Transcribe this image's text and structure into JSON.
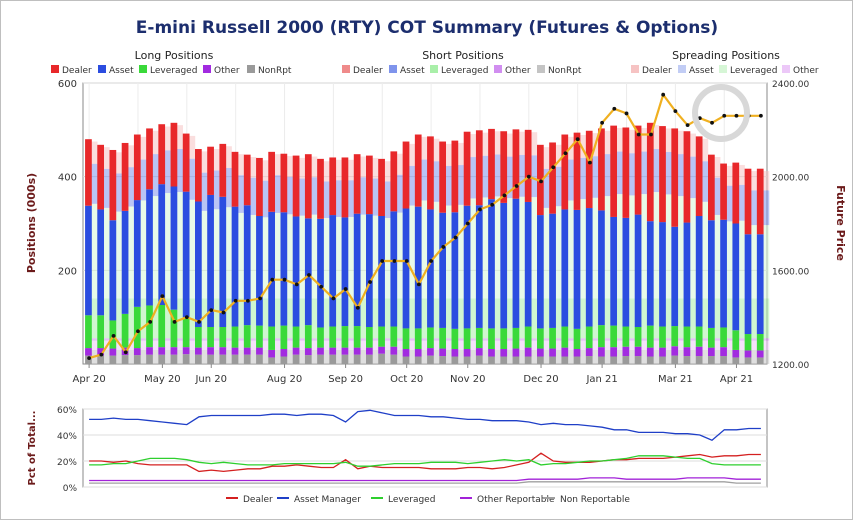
{
  "chart_data": [
    {
      "type": "bar",
      "title": "E-mini Russell 2000 (RTY) COT Summary (Futures & Options)",
      "stacked": true,
      "ylabel": "Positions (000s)",
      "y2label": "Future Price",
      "ylim": [
        0,
        600
      ],
      "y2lim": [
        1200,
        2400
      ],
      "yticks": [
        "200",
        "400",
        "600"
      ],
      "y2ticks": [
        "1200.00",
        "1600.00",
        "2000.00",
        "2400.00"
      ],
      "xticks": [
        "Apr 20",
        "May 20",
        "Jun 20",
        "Aug 20",
        "Sep 20",
        "Oct 20",
        "Nov 20",
        "Dec 20",
        "Jan 21",
        "Mar 21",
        "Apr 21"
      ],
      "xtick_positions": [
        0.5,
        6.5,
        10.5,
        16.5,
        21.5,
        26.5,
        31.5,
        37.5,
        42.5,
        48.5,
        53.5
      ],
      "n_weeks": 56,
      "grid": true,
      "legend_groups": [
        {
          "title": "Long Positions",
          "items": [
            "Dealer",
            "Asset",
            "Leveraged",
            "Other",
            "NonRpt"
          ],
          "colors": [
            "#e8282a",
            "#2b4de0",
            "#3ad93a",
            "#a22be0",
            "#9a9a9a"
          ]
        },
        {
          "title": "Short Positions",
          "items": [
            "Dealer",
            "Asset",
            "Leveraged",
            "Other",
            "NonRpt"
          ],
          "colors": [
            "#ef8a8a",
            "#7f94ec",
            "#a9efa9",
            "#d18ef0",
            "#c4c4c4"
          ]
        },
        {
          "title": "Spreading Positions",
          "items": [
            "Dealer",
            "Asset",
            "Leveraged",
            "Other"
          ],
          "colors": [
            "#f6c3c3",
            "#c2cdf5",
            "#d6f6d6",
            "#ecc8f8"
          ]
        }
      ],
      "long_total": [
        480,
        468,
        457,
        472,
        490,
        503,
        512,
        515,
        492,
        459,
        464,
        470,
        453,
        447,
        440,
        453,
        449,
        445,
        448,
        438,
        441,
        441,
        448,
        445,
        438,
        454,
        475,
        490,
        486,
        475,
        477,
        496,
        499,
        502,
        497,
        501,
        500,
        468,
        473,
        490,
        494,
        498,
        503,
        509,
        505,
        509,
        515,
        508,
        503,
        497,
        486,
        447,
        428,
        430,
        417,
        417
      ],
      "dealer_long": [
        142,
        138,
        150,
        145,
        140,
        130,
        128,
        136,
        124,
        112,
        103,
        113,
        117,
        108,
        124,
        128,
        125,
        130,
        137,
        128,
        123,
        128,
        127,
        125,
        122,
        128,
        143,
        154,
        156,
        152,
        153,
        158,
        160,
        150,
        153,
        148,
        154,
        150,
        152,
        160,
        165,
        165,
        175,
        195,
        193,
        190,
        210,
        205,
        210,
        195,
        170,
        140,
        120,
        130,
        140,
        140
      ],
      "asset_long": [
        234,
        226,
        214,
        220,
        228,
        248,
        258,
        263,
        268,
        268,
        282,
        278,
        256,
        256,
        234,
        245,
        242,
        235,
        228,
        232,
        238,
        232,
        240,
        241,
        236,
        246,
        256,
        260,
        252,
        246,
        249,
        262,
        262,
        276,
        268,
        276,
        266,
        242,
        244,
        250,
        254,
        253,
        245,
        232,
        232,
        240,
        223,
        223,
        212,
        222,
        236,
        230,
        230,
        228,
        213,
        213
      ],
      "leveraged_long": [
        70,
        70,
        60,
        72,
        88,
        89,
        90,
        80,
        64,
        44,
        43,
        43,
        45,
        48,
        47,
        50,
        50,
        45,
        49,
        43,
        45,
        46,
        46,
        44,
        43,
        43,
        44,
        44,
        44,
        44,
        43,
        44,
        43,
        44,
        44,
        44,
        45,
        43,
        44,
        45,
        43,
        46,
        47,
        46,
        43,
        42,
        47,
        45,
        43,
        44,
        43,
        42,
        42,
        42,
        35,
        35
      ],
      "other_long": [
        16,
        16,
        15,
        16,
        15,
        16,
        16,
        16,
        15,
        15,
        16,
        16,
        15,
        15,
        15,
        16,
        16,
        15,
        15,
        15,
        15,
        15,
        15,
        15,
        15,
        17,
        16,
        16,
        16,
        16,
        16,
        16,
        16,
        16,
        16,
        17,
        19,
        17,
        17,
        19,
        16,
        17,
        20,
        20,
        20,
        20,
        19,
        19,
        20,
        19,
        20,
        18,
        19,
        16,
        15,
        15
      ],
      "nonrpt_long": [
        18,
        18,
        18,
        19,
        19,
        20,
        20,
        20,
        21,
        20,
        20,
        20,
        20,
        20,
        20,
        14,
        16,
        20,
        19,
        20,
        20,
        20,
        20,
        20,
        22,
        20,
        16,
        16,
        18,
        17,
        16,
        16,
        18,
        16,
        16,
        16,
        16,
        16,
        16,
        16,
        16,
        17,
        16,
        16,
        17,
        17,
        16,
        16,
        18,
        17,
        17,
        17,
        17,
        14,
        14,
        14
      ],
      "future_price": [
        1225,
        1240,
        1320,
        1250,
        1340,
        1380,
        1490,
        1380,
        1400,
        1380,
        1430,
        1420,
        1470,
        1470,
        1480,
        1560,
        1560,
        1540,
        1580,
        1530,
        1480,
        1520,
        1440,
        1550,
        1640,
        1640,
        1640,
        1540,
        1640,
        1700,
        1740,
        1800,
        1860,
        1880,
        1920,
        1960,
        2000,
        1980,
        2040,
        2100,
        2160,
        2060,
        2230,
        2290,
        2270,
        2180,
        2180,
        2350,
        2280,
        2220,
        2250,
        2230,
        2260,
        2260,
        2260,
        2260
      ]
    },
    {
      "type": "line",
      "ylabel": "Pct of Total...",
      "ylim": [
        0,
        60
      ],
      "yticks": [
        "0%",
        "20%",
        "40%",
        "60%"
      ],
      "grid": true,
      "series": [
        {
          "name": "Dealer",
          "color": "#d42020",
          "values": [
            20,
            20,
            19,
            20,
            18,
            17,
            17,
            17,
            17,
            12,
            13,
            12,
            13,
            14,
            14,
            16,
            16,
            17,
            16,
            15,
            15,
            21,
            14,
            16,
            15,
            15,
            15,
            15,
            14,
            14,
            14,
            15,
            15,
            14,
            15,
            17,
            19,
            26,
            20,
            19,
            19,
            19,
            20,
            21,
            21,
            22,
            22,
            22,
            23,
            24,
            25,
            23,
            24,
            24,
            25,
            25
          ]
        },
        {
          "name": "Asset Manager",
          "color": "#1f3fc7",
          "values": [
            52,
            52,
            53,
            52,
            52,
            51,
            50,
            49,
            48,
            54,
            55,
            55,
            55,
            55,
            55,
            56,
            56,
            55,
            56,
            56,
            55,
            50,
            58,
            59,
            57,
            55,
            55,
            55,
            54,
            54,
            53,
            52,
            52,
            51,
            51,
            51,
            50,
            48,
            49,
            48,
            48,
            47,
            46,
            44,
            44,
            42,
            42,
            42,
            41,
            41,
            40,
            36,
            44,
            44,
            45,
            45
          ]
        },
        {
          "name": "Leveraged",
          "color": "#2ecf2e",
          "values": [
            17,
            17,
            18,
            18,
            20,
            22,
            22,
            22,
            21,
            19,
            18,
            19,
            18,
            17,
            17,
            17,
            18,
            18,
            18,
            18,
            18,
            19,
            16,
            16,
            17,
            18,
            18,
            18,
            19,
            19,
            19,
            18,
            19,
            20,
            21,
            20,
            21,
            17,
            18,
            18,
            19,
            20,
            20,
            21,
            22,
            24,
            24,
            24,
            23,
            22,
            22,
            18,
            17,
            17,
            17,
            17
          ]
        },
        {
          "name": "Other Reportable",
          "color": "#a222d8",
          "values": [
            5,
            5,
            5,
            5,
            5,
            5,
            5,
            5,
            5,
            5,
            5,
            5,
            5,
            5,
            5,
            5,
            5,
            5,
            5,
            5,
            5,
            5,
            5,
            5,
            5,
            5,
            5,
            5,
            5,
            5,
            5,
            5,
            5,
            5,
            5,
            5,
            6,
            6,
            6,
            6,
            6,
            7,
            7,
            7,
            6,
            6,
            6,
            6,
            6,
            7,
            7,
            7,
            7,
            6,
            6,
            6
          ]
        },
        {
          "name": "Non Reportable",
          "color": "#a0a0a0",
          "values": [
            3,
            3,
            3,
            3,
            3,
            3,
            3,
            3,
            3,
            3,
            3,
            3,
            3,
            3,
            3,
            3,
            3,
            3,
            3,
            3,
            3,
            3,
            3,
            3,
            3,
            3,
            3,
            3,
            3,
            3,
            3,
            3,
            3,
            3,
            3,
            3,
            4,
            4,
            4,
            4,
            4,
            4,
            4,
            4,
            4,
            4,
            4,
            4,
            4,
            4,
            4,
            4,
            4,
            3,
            3,
            3
          ]
        }
      ]
    }
  ]
}
